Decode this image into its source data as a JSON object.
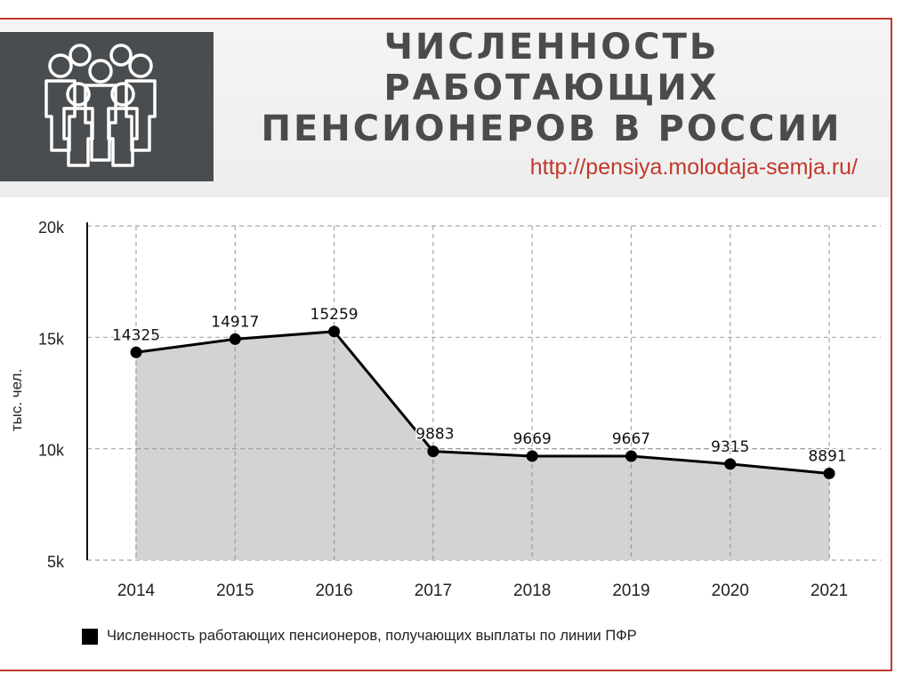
{
  "header": {
    "title_lines": [
      "ЧИСЛЕННОСТЬ",
      "РАБОТАЮЩИХ",
      "ПЕНСИОНЕРОВ В РОССИИ"
    ],
    "url": "http://pensiya.molodaja-semja.ru/",
    "logo_icon": "people-group-icon"
  },
  "colors": {
    "accent": "#c0392b",
    "header_dark": "#4a4d4f",
    "title_text": "#4b4b4b",
    "area_fill": "#d3d3d3",
    "line": "#000000"
  },
  "chart_data": {
    "type": "area",
    "title": "",
    "xlabel": "",
    "ylabel": "тыс. чел.",
    "categories": [
      "2014",
      "2015",
      "2016",
      "2017",
      "2018",
      "2019",
      "2020",
      "2021"
    ],
    "series": [
      {
        "name": "Численность работающих пенсионеров, получающих выплаты по линии ПФР",
        "values": [
          14325,
          14917,
          15259,
          9883,
          9669,
          9667,
          9315,
          8891
        ]
      }
    ],
    "ylim": [
      5000,
      20000
    ],
    "yticks": [
      5000,
      10000,
      15000,
      20000
    ],
    "ytick_labels": [
      "5k",
      "10k",
      "15k",
      "20k"
    ],
    "data_labels": [
      "14325",
      "14917",
      "15259",
      "9883",
      "9669",
      "9667",
      "9315",
      "8891"
    ],
    "grid": true,
    "legend_position": "bottom-left"
  }
}
